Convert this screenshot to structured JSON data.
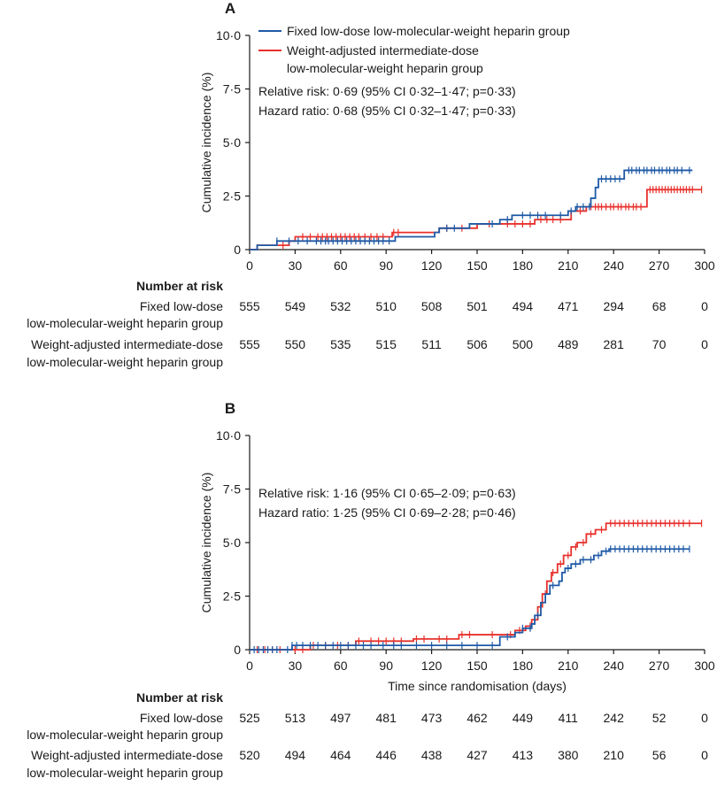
{
  "colors": {
    "fixed": "#1f5aa6",
    "weight": "#e8312c",
    "axis": "#1a1a1a"
  },
  "chart_data": [
    {
      "type": "line",
      "panel_label": "A",
      "xlabel": "",
      "ylabel": "Cumulative incidence (%)",
      "xlim": [
        0,
        300
      ],
      "ylim": [
        0,
        10
      ],
      "xticks": [
        "0",
        "30",
        "60",
        "90",
        "120",
        "150",
        "180",
        "210",
        "240",
        "270",
        "300"
      ],
      "yticks": [
        "0",
        "2·5",
        "5·0",
        "7·5",
        "10·0"
      ],
      "legend": [
        "Fixed low-dose low-molecular-weight heparin group",
        "Weight-adjusted intermediate-dose",
        "low-molecular-weight heparin group"
      ],
      "annotations": [
        "Relative risk: 0·69 (95% CI 0·32–1·47; p=0·33)",
        "Hazard ratio: 0·68 (95% CI 0·32–1·47; p=0·33)"
      ],
      "series": [
        {
          "name": "Fixed low-dose low-molecular-weight heparin group",
          "steps": [
            [
              0,
              0
            ],
            [
              5,
              0.2
            ],
            [
              18,
              0.4
            ],
            [
              60,
              0.4
            ],
            [
              96,
              0.6
            ],
            [
              120,
              0.6
            ],
            [
              122,
              0.8
            ],
            [
              125,
              1.0
            ],
            [
              140,
              1.0
            ],
            [
              145,
              1.2
            ],
            [
              165,
              1.4
            ],
            [
              173,
              1.6
            ],
            [
              198,
              1.6
            ],
            [
              210,
              1.8
            ],
            [
              215,
              2.0
            ],
            [
              225,
              2.4
            ],
            [
              228,
              2.9
            ],
            [
              230,
              3.3
            ],
            [
              247,
              3.7
            ],
            [
              292,
              3.7
            ]
          ],
          "censors": [
            18,
            26,
            32,
            38,
            44,
            47,
            50,
            52,
            55,
            58,
            61,
            64,
            67,
            70,
            73,
            76,
            79,
            82,
            85,
            88,
            92,
            130,
            135,
            160,
            170,
            180,
            185,
            190,
            195,
            205,
            212,
            216,
            220,
            224,
            232,
            235,
            238,
            241,
            244,
            250,
            252,
            255,
            257,
            260,
            262,
            265,
            267,
            270,
            272,
            275,
            277,
            280,
            282,
            285,
            290
          ]
        },
        {
          "name": "Weight-adjusted intermediate-dose low-molecular-weight heparin group",
          "steps": [
            [
              0,
              0
            ],
            [
              5,
              0.2
            ],
            [
              26,
              0.4
            ],
            [
              30,
              0.6
            ],
            [
              90,
              0.6
            ],
            [
              94,
              0.8
            ],
            [
              120,
              0.8
            ],
            [
              125,
              1.0
            ],
            [
              146,
              1.0
            ],
            [
              150,
              1.2
            ],
            [
              185,
              1.2
            ],
            [
              188,
              1.4
            ],
            [
              208,
              1.4
            ],
            [
              212,
              1.8
            ],
            [
              222,
              2.0
            ],
            [
              260,
              2.0
            ],
            [
              262,
              2.8
            ],
            [
              298,
              2.8
            ]
          ],
          "censors": [
            22,
            35,
            40,
            45,
            48,
            51,
            54,
            57,
            60,
            63,
            66,
            69,
            72,
            76,
            80,
            84,
            88,
            95,
            98,
            130,
            140,
            158,
            170,
            175,
            180,
            185,
            192,
            196,
            200,
            205,
            218,
            225,
            228,
            230,
            232,
            235,
            238,
            240,
            243,
            245,
            248,
            250,
            253,
            255,
            258,
            264,
            266,
            268,
            270,
            272,
            274,
            276,
            278,
            280,
            282,
            284,
            286,
            288,
            290,
            292,
            298
          ]
        }
      ],
      "number_at_risk": {
        "title": "Number at risk",
        "rows": [
          {
            "label1": "Fixed low-dose",
            "label2": "low-molecular-weight heparin group",
            "values": [
              "555",
              "549",
              "532",
              "510",
              "508",
              "501",
              "494",
              "471",
              "294",
              "68",
              "0"
            ]
          },
          {
            "label1": "Weight-adjusted intermediate-dose",
            "label2": "low-molecular-weight heparin group",
            "values": [
              "555",
              "550",
              "535",
              "515",
              "511",
              "506",
              "500",
              "489",
              "281",
              "70",
              "0"
            ]
          }
        ]
      }
    },
    {
      "type": "line",
      "panel_label": "B",
      "xlabel": "Time since randomisation (days)",
      "ylabel": "Cumulative incidence (%)",
      "xlim": [
        0,
        300
      ],
      "ylim": [
        0,
        10
      ],
      "xticks": [
        "0",
        "30",
        "60",
        "90",
        "120",
        "150",
        "180",
        "210",
        "240",
        "270",
        "300"
      ],
      "yticks": [
        "0",
        "2·5",
        "5·0",
        "7·5",
        "10·0"
      ],
      "annotations": [
        "Relative risk: 1·16 (95% CI 0·65–2·09; p=0·63)",
        "Hazard ratio: 1·25 (95% CI 0·69–2·28; p=0·46)"
      ],
      "series": [
        {
          "name": "Fixed low-dose low-molecular-weight heparin group",
          "steps": [
            [
              0,
              0
            ],
            [
              28,
              0.2
            ],
            [
              155,
              0.2
            ],
            [
              165,
              0.6
            ],
            [
              175,
              0.8
            ],
            [
              180,
              1.0
            ],
            [
              186,
              1.2
            ],
            [
              188,
              1.6
            ],
            [
              192,
              2.2
            ],
            [
              195,
              2.6
            ],
            [
              198,
              3.0
            ],
            [
              204,
              3.2
            ],
            [
              206,
              3.6
            ],
            [
              208,
              3.8
            ],
            [
              212,
              4.0
            ],
            [
              218,
              4.2
            ],
            [
              227,
              4.4
            ],
            [
              232,
              4.6
            ],
            [
              237,
              4.7
            ],
            [
              290,
              4.7
            ]
          ],
          "censors": [
            3,
            6,
            9,
            12,
            15,
            18,
            25,
            28,
            31,
            35,
            40,
            45,
            50,
            55,
            60,
            65,
            70,
            75,
            80,
            88,
            95,
            100,
            110,
            120,
            130,
            140,
            150,
            160,
            170,
            180,
            185,
            190,
            200,
            210,
            215,
            220,
            225,
            230,
            235,
            238,
            241,
            244,
            247,
            250,
            253,
            256,
            259,
            262,
            265,
            268,
            271,
            274,
            277,
            280,
            283,
            286,
            290
          ]
        },
        {
          "name": "Weight-adjusted intermediate-dose low-molecular-weight heparin group",
          "steps": [
            [
              0,
              0
            ],
            [
              40,
              0.2
            ],
            [
              70,
              0.4
            ],
            [
              105,
              0.4
            ],
            [
              108,
              0.5
            ],
            [
              135,
              0.5
            ],
            [
              138,
              0.7
            ],
            [
              175,
              0.9
            ],
            [
              182,
              1.1
            ],
            [
              186,
              1.4
            ],
            [
              190,
              2.0
            ],
            [
              193,
              2.6
            ],
            [
              196,
              3.2
            ],
            [
              199,
              3.6
            ],
            [
              203,
              4.0
            ],
            [
              207,
              4.4
            ],
            [
              212,
              4.8
            ],
            [
              216,
              5.0
            ],
            [
              222,
              5.4
            ],
            [
              228,
              5.6
            ],
            [
              235,
              5.9
            ],
            [
              298,
              5.9
            ]
          ],
          "censors": [
            5,
            10,
            15,
            20,
            30,
            35,
            42,
            50,
            58,
            65,
            72,
            80,
            85,
            90,
            95,
            100,
            110,
            115,
            125,
            130,
            140,
            145,
            160,
            172,
            178,
            185,
            195,
            200,
            205,
            210,
            215,
            220,
            225,
            232,
            238,
            241,
            244,
            247,
            250,
            253,
            256,
            259,
            262,
            265,
            268,
            271,
            274,
            277,
            280,
            283,
            286,
            290,
            298
          ]
        }
      ],
      "number_at_risk": {
        "title": "Number at risk",
        "rows": [
          {
            "label1": "Fixed low-dose",
            "label2": "low-molecular-weight heparin group",
            "values": [
              "525",
              "513",
              "497",
              "481",
              "473",
              "462",
              "449",
              "411",
              "242",
              "52",
              "0"
            ]
          },
          {
            "label1": "Weight-adjusted intermediate-dose",
            "label2": "low-molecular-weight heparin group",
            "values": [
              "520",
              "494",
              "464",
              "446",
              "438",
              "427",
              "413",
              "380",
              "210",
              "56",
              "0"
            ]
          }
        ]
      }
    }
  ]
}
